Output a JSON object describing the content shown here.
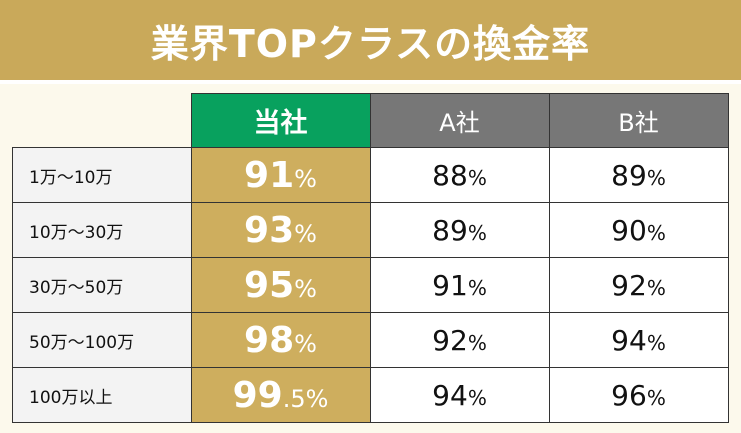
{
  "title": "業界TOPクラスの換金率",
  "header": {
    "ours": "当社",
    "a": "A社",
    "b": "B社"
  },
  "percent_sign": "%",
  "rows": [
    {
      "label": "1万〜10万",
      "ours": "91",
      "a": "88",
      "b": "89"
    },
    {
      "label": "10万〜30万",
      "ours": "93",
      "a": "89",
      "b": "90"
    },
    {
      "label": "30万〜50万",
      "ours": "95",
      "a": "91",
      "b": "92"
    },
    {
      "label": "50万〜100万",
      "ours": "98",
      "a": "92",
      "b": "94"
    },
    {
      "label": "100万以上",
      "ours": "99",
      "ours_decimal": ".5",
      "a": "94",
      "b": "96"
    }
  ],
  "colors": {
    "gold": "#c9a95a",
    "green": "#08a15e",
    "gray": "#777777"
  }
}
